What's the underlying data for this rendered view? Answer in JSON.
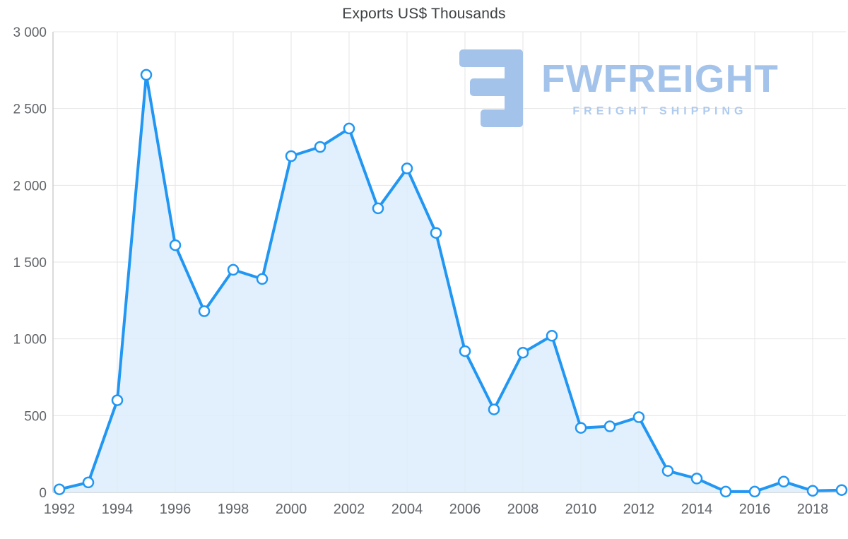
{
  "title": "Exports US$ Thousands",
  "logo": {
    "name": "FWFREIGHT",
    "subtitle": "FREIGHT SHIPPING",
    "color": "#a4c3ea"
  },
  "chart_data": {
    "type": "area",
    "title": "Exports US$ Thousands",
    "x": [
      1992,
      1993,
      1994,
      1995,
      1996,
      1997,
      1998,
      1999,
      2000,
      2001,
      2002,
      2003,
      2004,
      2005,
      2006,
      2007,
      2008,
      2009,
      2010,
      2011,
      2012,
      2013,
      2014,
      2015,
      2016,
      2017,
      2018,
      2019
    ],
    "values": [
      20,
      65,
      600,
      2720,
      1610,
      1180,
      1450,
      1390,
      2190,
      2250,
      2370,
      1850,
      2110,
      1690,
      920,
      540,
      910,
      1020,
      420,
      430,
      490,
      140,
      90,
      5,
      5,
      70,
      10,
      15
    ],
    "series_name": "Exports US$ Thousands",
    "xlabel": "",
    "ylabel": "",
    "ylim": [
      0,
      3000
    ],
    "xticks": [
      1992,
      1994,
      1996,
      1998,
      2000,
      2002,
      2004,
      2006,
      2008,
      2010,
      2012,
      2014,
      2016,
      2018
    ],
    "yticks": [
      0,
      500,
      1000,
      1500,
      2000,
      2500,
      3000
    ],
    "ytick_labels": [
      "0",
      "500",
      "1 000",
      "1 500",
      "2 000",
      "2 500",
      "3 000"
    ],
    "grid": true,
    "legend": false,
    "line_color": "#2196f3",
    "area_color": "#dcedfb",
    "marker_fill": "#ffffff",
    "grid_color": "#e6e6e6",
    "axis_color": "#cfcfcf",
    "tick_label_color": "#5f6368"
  }
}
